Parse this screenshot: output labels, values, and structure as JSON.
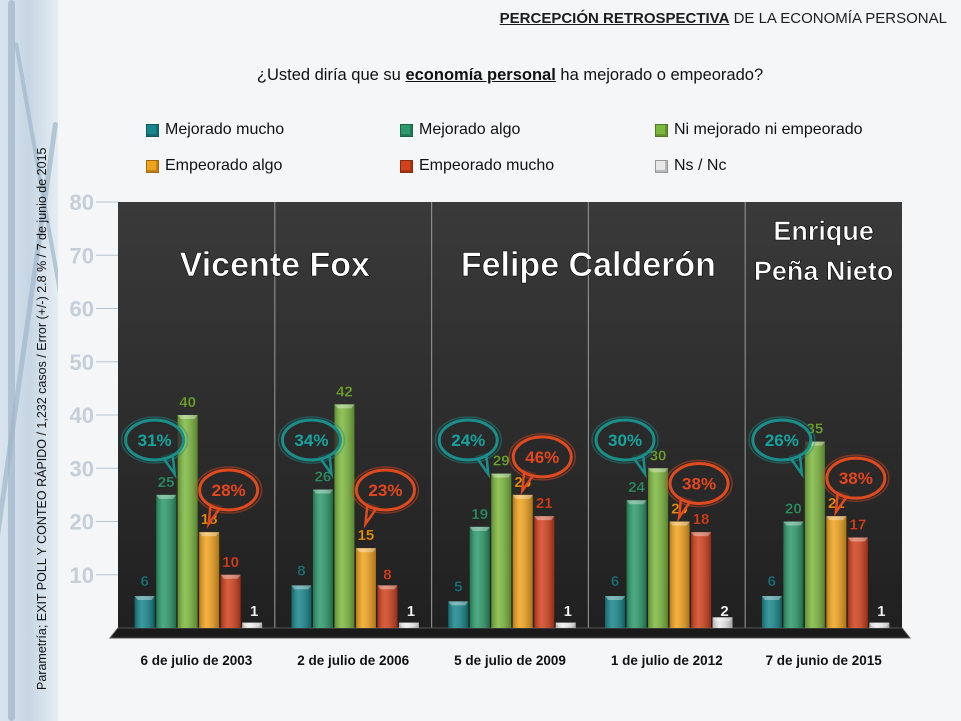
{
  "header": {
    "title_bold": "PERCEPCIÓN RETROSPECTIVA",
    "title_rest": " DE LA ECONOMÍA PERSONAL"
  },
  "question": {
    "pre": "¿Usted diría que su ",
    "emph": "economía personal",
    "post": " ha mejorado o empeorado?"
  },
  "source_note": "Parametría; EXIT POLL Y CONTEO RÁPIDO / 1,232 casos / Error (+/-) 2.8 % / 7 de junio de 2015",
  "chart_data": {
    "type": "bar",
    "ylim": [
      0,
      80
    ],
    "yticks": [
      10,
      20,
      30,
      40,
      50,
      60,
      70,
      80
    ],
    "grid": false,
    "categories": [
      "6 de julio de 2003",
      "2 de julio de 2006",
      "5 de julio de 2009",
      "1 de julio de 2012",
      "7 de junio de 2015"
    ],
    "series": [
      {
        "name": "Mejorado mucho",
        "color": "#17868c",
        "label_color": "#1b6f76",
        "values": [
          6,
          8,
          5,
          6,
          6
        ]
      },
      {
        "name": "Mejorado algo",
        "color": "#2c9a6a",
        "label_color": "#2e8b62",
        "values": [
          25,
          26,
          19,
          24,
          20
        ]
      },
      {
        "name": "Ni mejorado ni empeorado",
        "color": "#7cb83e",
        "label_color": "#6e9e2f",
        "values": [
          40,
          42,
          29,
          30,
          35
        ]
      },
      {
        "name": "Empeorado algo",
        "color": "#f2a31d",
        "label_color": "#e8900c",
        "values": [
          18,
          15,
          25,
          20,
          21
        ]
      },
      {
        "name": "Empeorado mucho",
        "color": "#d2411c",
        "label_color": "#d2411c",
        "values": [
          10,
          8,
          21,
          18,
          17
        ]
      },
      {
        "name": "Ns / Nc",
        "color": "#e8e8e8",
        "label_color": "#ffffff",
        "values": [
          1,
          1,
          1,
          2,
          1
        ]
      }
    ],
    "periods": [
      {
        "label": "Vicente Fox",
        "from": 0,
        "to": 1
      },
      {
        "label": "Felipe Calderón",
        "from": 2,
        "to": 3
      },
      {
        "label": "Enrique Peña Nieto",
        "from": 4,
        "to": 4,
        "lines": [
          "Enrique",
          "Peña Nieto"
        ]
      }
    ],
    "annotations": [
      {
        "category": 0,
        "side": "improved",
        "text": "31%",
        "color": "#1a8f8a"
      },
      {
        "category": 0,
        "side": "worsened",
        "text": "28%",
        "color": "#e04a1f"
      },
      {
        "category": 1,
        "side": "improved",
        "text": "34%",
        "color": "#1a8f8a"
      },
      {
        "category": 1,
        "side": "worsened",
        "text": "23%",
        "color": "#e04a1f"
      },
      {
        "category": 2,
        "side": "improved",
        "text": "24%",
        "color": "#1a8f8a"
      },
      {
        "category": 2,
        "side": "worsened",
        "text": "46%",
        "color": "#e04a1f"
      },
      {
        "category": 3,
        "side": "improved",
        "text": "30%",
        "color": "#1a8f8a"
      },
      {
        "category": 3,
        "side": "worsened",
        "text": "38%",
        "color": "#e04a1f"
      },
      {
        "category": 4,
        "side": "improved",
        "text": "26%",
        "color": "#1a8f8a"
      },
      {
        "category": 4,
        "side": "worsened",
        "text": "38%",
        "color": "#e04a1f"
      }
    ]
  }
}
